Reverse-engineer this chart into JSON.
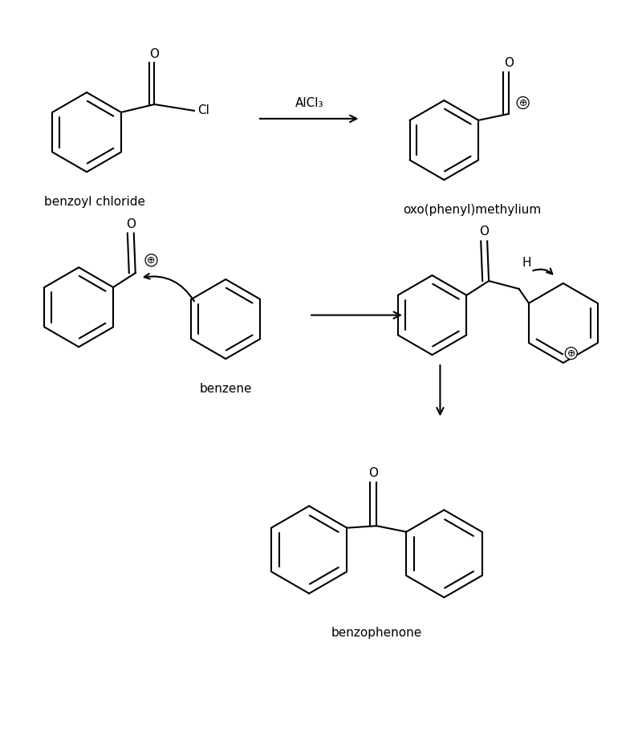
{
  "background_color": "#ffffff",
  "figure_width": 8.0,
  "figure_height": 9.17,
  "dpi": 100,
  "labels": {
    "benzoyl_chloride": "benzoyl chloride",
    "alcl3": "AlCl₃",
    "oxo_phenyl": "oxo(phenyl)methylium",
    "benzene": "benzene",
    "benzophenone": "benzophenone",
    "cl": "Cl",
    "o": "O",
    "h": "H",
    "plus": "⊕"
  },
  "line_color": "#000000",
  "text_color": "#000000",
  "line_width": 1.5,
  "font_size": 11,
  "label_font_size": 11
}
